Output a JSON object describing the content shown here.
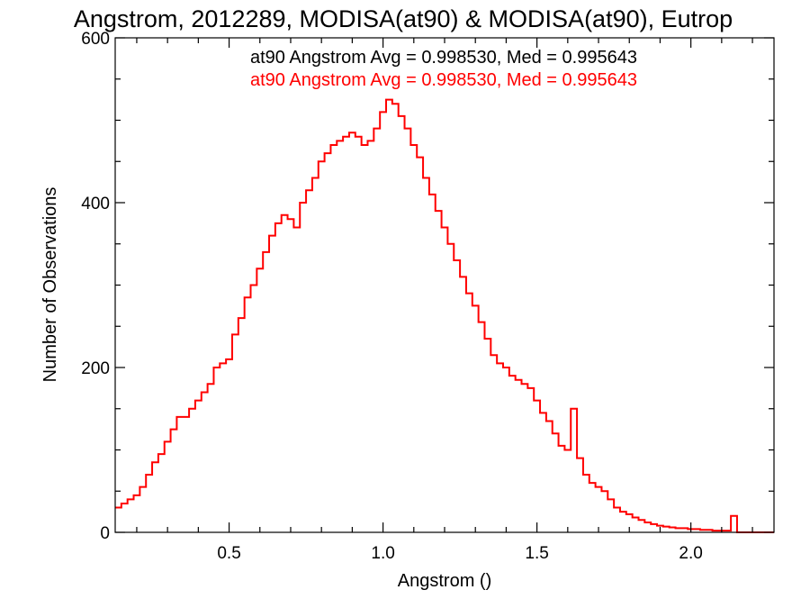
{
  "chart_data": {
    "type": "line",
    "title": "Angstrom, 2012289, MODISA(at90) & MODISA(at90), Eutrop",
    "xlabel": "Angstrom ()",
    "ylabel": "Number of Observations",
    "xlim": [
      0.13,
      2.27
    ],
    "ylim": [
      0,
      600
    ],
    "xticks": [
      0.5,
      1.0,
      1.5,
      2.0
    ],
    "xtick_labels": [
      "0.5",
      "1.0",
      "1.5",
      "2.0"
    ],
    "yticks": [
      0,
      200,
      400,
      600
    ],
    "ytick_labels": [
      "0",
      "200",
      "400",
      "600"
    ],
    "grid": false,
    "legend": [
      {
        "text": "at90 Angstrom Avg = 0.998530, Med = 0.995643",
        "color": "#000000"
      },
      {
        "text": "at90 Angstrom Avg = 0.998530, Med = 0.995643",
        "color": "#ff0000"
      }
    ],
    "series": [
      {
        "color": "#ff0000",
        "style": "step",
        "x": [
          0.13,
          0.15,
          0.17,
          0.19,
          0.21,
          0.23,
          0.25,
          0.27,
          0.29,
          0.31,
          0.33,
          0.35,
          0.37,
          0.39,
          0.41,
          0.43,
          0.45,
          0.47,
          0.49,
          0.51,
          0.53,
          0.55,
          0.57,
          0.59,
          0.61,
          0.63,
          0.65,
          0.67,
          0.69,
          0.71,
          0.73,
          0.75,
          0.77,
          0.79,
          0.81,
          0.83,
          0.85,
          0.87,
          0.89,
          0.91,
          0.93,
          0.95,
          0.97,
          0.99,
          1.01,
          1.03,
          1.05,
          1.07,
          1.09,
          1.11,
          1.13,
          1.15,
          1.17,
          1.19,
          1.21,
          1.23,
          1.25,
          1.27,
          1.29,
          1.31,
          1.33,
          1.35,
          1.37,
          1.39,
          1.41,
          1.43,
          1.45,
          1.47,
          1.49,
          1.51,
          1.53,
          1.55,
          1.57,
          1.59,
          1.61,
          1.63,
          1.65,
          1.67,
          1.69,
          1.71,
          1.73,
          1.75,
          1.77,
          1.79,
          1.81,
          1.83,
          1.85,
          1.87,
          1.89,
          1.91,
          1.93,
          1.95,
          1.97,
          1.99,
          2.01,
          2.03,
          2.05,
          2.07,
          2.09,
          2.11,
          2.13,
          2.15,
          2.17,
          2.19,
          2.21,
          2.23,
          2.25,
          2.27
        ],
        "y": [
          30,
          35,
          40,
          45,
          55,
          70,
          85,
          95,
          110,
          125,
          140,
          140,
          150,
          160,
          170,
          180,
          200,
          205,
          210,
          240,
          260,
          285,
          300,
          320,
          340,
          360,
          375,
          385,
          380,
          370,
          400,
          415,
          430,
          450,
          460,
          470,
          475,
          480,
          485,
          480,
          470,
          475,
          490,
          510,
          525,
          520,
          505,
          490,
          470,
          455,
          430,
          410,
          390,
          370,
          350,
          330,
          310,
          290,
          275,
          255,
          235,
          215,
          205,
          200,
          190,
          185,
          180,
          175,
          160,
          145,
          135,
          120,
          105,
          100,
          150,
          90,
          70,
          60,
          55,
          50,
          40,
          30,
          25,
          22,
          18,
          15,
          12,
          10,
          8,
          7,
          6,
          5,
          5,
          4,
          4,
          3,
          3,
          2,
          2,
          2,
          20,
          0,
          0,
          0,
          0,
          0,
          0,
          0
        ]
      }
    ]
  }
}
